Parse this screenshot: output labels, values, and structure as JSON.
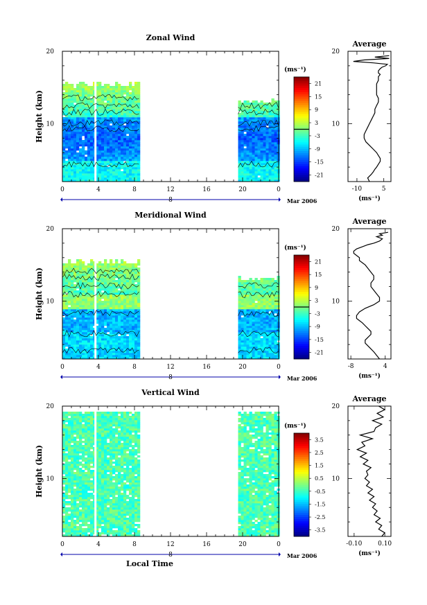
{
  "chart_data": [
    {
      "type": "heatmap",
      "title": "Zonal Wind",
      "ylabel": "Height (km)",
      "ylim": [
        2,
        20
      ],
      "yticks": [
        "20",
        "10"
      ],
      "xlim": [
        0,
        24
      ],
      "xticks": [
        "0",
        "4",
        "8",
        "12",
        "16",
        "20",
        "0"
      ],
      "date_marker": "8",
      "date_label": "Mar 2006",
      "data_spans_hours": [
        [
          0,
          8.5
        ],
        [
          19.5,
          24
        ]
      ],
      "colorbar": {
        "unit": "(ms⁻¹)",
        "ticks": [
          "21",
          "15",
          "9",
          "3",
          "-3",
          "-9",
          "-15",
          "-21"
        ],
        "min": -24,
        "max": 24
      }
    },
    {
      "type": "heatmap",
      "title": "Meridional Wind",
      "ylabel": "Height (km)",
      "ylim": [
        2,
        20
      ],
      "yticks": [
        "20",
        "10"
      ],
      "xlim": [
        0,
        24
      ],
      "xticks": [
        "0",
        "4",
        "8",
        "12",
        "16",
        "20",
        "0"
      ],
      "date_marker": "8",
      "date_label": "Mar 2006",
      "data_spans_hours": [
        [
          0,
          8.5
        ],
        [
          19.5,
          24
        ]
      ],
      "colorbar": {
        "unit": "(ms⁻¹)",
        "ticks": [
          "21",
          "15",
          "9",
          "3",
          "-3",
          "-9",
          "-15",
          "-21"
        ],
        "min": -24,
        "max": 24
      }
    },
    {
      "type": "heatmap",
      "title": "Vertical Wind",
      "ylabel": "Height (km)",
      "xlabel": "Local Time",
      "ylim": [
        2,
        20
      ],
      "yticks": [
        "20",
        "10"
      ],
      "xlim": [
        0,
        24
      ],
      "xticks": [
        "0",
        "4",
        "8",
        "12",
        "16",
        "20",
        "0"
      ],
      "date_marker": "8",
      "date_label": "Mar 2006",
      "data_spans_hours": [
        [
          0,
          8.5
        ],
        [
          19.5,
          24
        ]
      ],
      "colorbar": {
        "unit": "(ms⁻¹)",
        "ticks": [
          "3.5",
          "2.5",
          "1.5",
          "0.5",
          "-0.5",
          "-1.5",
          "-2.5",
          "-3.5"
        ],
        "min": -4,
        "max": 4
      }
    },
    {
      "type": "line",
      "title": "Average",
      "xlabel": "(ms⁻¹)",
      "ylim": [
        2,
        20
      ],
      "yticks": [
        "20",
        "10"
      ],
      "xlim": [
        -15,
        9
      ],
      "xticks": [
        "-10",
        "5"
      ],
      "x": [
        -3,
        -4,
        -2,
        -1,
        0,
        1,
        2,
        3,
        3,
        2,
        1,
        -1,
        -3,
        -5,
        -6,
        -6,
        -5,
        -4,
        -3,
        -2,
        -1,
        0,
        0,
        1,
        2,
        2,
        1,
        1,
        1,
        1,
        2,
        2,
        3,
        2,
        2,
        3,
        4,
        6,
        7,
        -1,
        -12,
        -6,
        8,
        0,
        8
      ],
      "y": [
        2,
        2.5,
        3,
        3.3,
        3.7,
        4,
        4.4,
        4.8,
        5.2,
        5.6,
        6,
        6.5,
        7,
        7.5,
        8,
        8.5,
        9,
        9.5,
        10,
        10.5,
        11,
        11.5,
        12,
        12.5,
        13,
        13.5,
        14,
        14.5,
        15,
        15.5,
        16,
        16.5,
        16.8,
        17,
        17.3,
        17.6,
        17.8,
        18,
        18.2,
        18.4,
        18.6,
        18.8,
        19,
        19.2,
        19.4
      ]
    },
    {
      "type": "line",
      "title": "Average",
      "xlabel": "(ms⁻¹)",
      "ylim": [
        2,
        20
      ],
      "yticks": [
        "20",
        "10"
      ],
      "xlim": [
        -9,
        6
      ],
      "xticks": [
        "-8",
        "4"
      ],
      "x": [
        2,
        1,
        0,
        -1,
        -2,
        -3,
        -3,
        -2,
        -1,
        -1,
        -2,
        -3,
        -4,
        -5,
        -6,
        -6,
        -5,
        -3,
        0,
        2,
        2,
        1,
        0,
        -1,
        -1,
        0,
        0,
        -1,
        -2,
        -3,
        -4,
        -5,
        -5,
        -6,
        -7,
        -7,
        -6,
        -4,
        -2,
        0,
        2,
        3,
        1,
        3,
        2,
        5
      ],
      "y": [
        2,
        2.5,
        3,
        3.4,
        3.8,
        4.2,
        4.6,
        5,
        5.4,
        5.8,
        6.2,
        6.6,
        7,
        7.3,
        7.6,
        8,
        8.5,
        9,
        9.5,
        10,
        10.5,
        11,
        11.5,
        12,
        12.5,
        13,
        13.5,
        14,
        14.5,
        15,
        15.3,
        15.6,
        16,
        16.3,
        16.6,
        16.9,
        17.2,
        17.5,
        17.8,
        18,
        18.3,
        18.6,
        18.9,
        19.1,
        19.3,
        19.5
      ]
    },
    {
      "type": "line",
      "title": "Average",
      "xlabel": "(ms⁻¹)",
      "ylim": [
        2,
        20
      ],
      "yticks": [
        "20",
        "10"
      ],
      "xlim": [
        -0.14,
        0.14
      ],
      "xticks": [
        "-0.10",
        "0.10"
      ],
      "x": [
        0.08,
        0.1,
        0.06,
        0.08,
        0.04,
        0.07,
        0.03,
        0.05,
        0.02,
        0.04,
        0.0,
        0.03,
        -0.01,
        0.02,
        -0.02,
        0.0,
        -0.03,
        -0.01,
        -0.02,
        0.01,
        -0.04,
        -0.01,
        -0.06,
        -0.02,
        -0.08,
        -0.03,
        -0.05,
        0.02,
        -0.06,
        0.03,
        0.04,
        0.08,
        0.02,
        0.09,
        0.05,
        0.1,
        0.06
      ],
      "y": [
        2,
        2.5,
        3,
        3.5,
        4,
        4.5,
        5,
        5.5,
        6,
        6.5,
        7,
        7.5,
        8,
        8.5,
        9,
        9.5,
        10,
        10.5,
        11,
        11.5,
        12,
        12.5,
        13,
        13.5,
        14,
        14.5,
        15,
        15.5,
        16,
        16.5,
        17,
        17.5,
        18,
        18.5,
        19,
        19.5,
        20
      ]
    }
  ]
}
